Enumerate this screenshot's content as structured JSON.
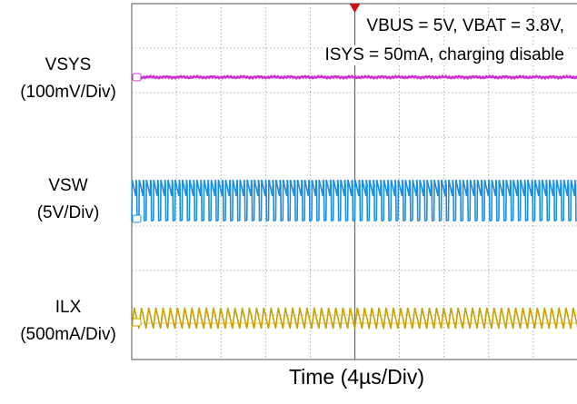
{
  "annotation": {
    "line1": "VBUS = 5V, VBAT = 3.8V,",
    "line2": "ISYS = 50mA, charging disable"
  },
  "channels": {
    "vsys": {
      "name": "VSYS",
      "scale": "(100mV/Div)"
    },
    "vsw": {
      "name": "VSW",
      "scale": "(5V/Div)"
    },
    "ilx": {
      "name": "ILX",
      "scale": "(500mA/Div)"
    }
  },
  "x_label": "Time (4µs/Div)",
  "chart_data": {
    "type": "line",
    "title": "",
    "xlabel": "Time (4µs/Div)",
    "x_divisions": 10,
    "y_divisions": 8,
    "grid": true,
    "trigger_marker": "top",
    "series": [
      {
        "name": "VSYS",
        "scale": "(100mV/Div)",
        "color": "#cc33cc",
        "shape": "flat"
      },
      {
        "name": "VSW",
        "scale": "(5V/Div)",
        "color": "#1b8ee0",
        "shape": "switching",
        "approx_cycles": 62
      },
      {
        "name": "ILX",
        "scale": "(500mA/Div)",
        "color": "#c8a200",
        "shape": "sawtooth",
        "approx_cycles": 62
      }
    ]
  }
}
